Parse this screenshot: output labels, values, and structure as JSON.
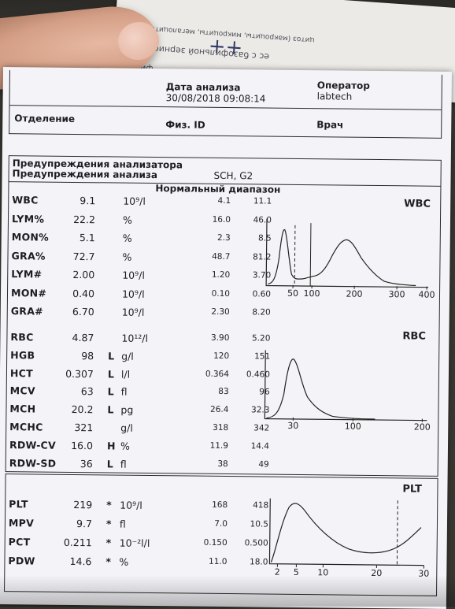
{
  "behind_paper": {
    "line1": "фильна",
    "line2": "ес с базофильной зернистостью",
    "line3": "цитоз (макроциты, микроциты, мегалоциты)",
    "handwriting": "++"
  },
  "header": {
    "date_label": "Дата анализа",
    "date_value": "30/08/2018 09:08:14",
    "operator_label": "Оператор",
    "operator_value": "labtech",
    "department_label": "Отделение",
    "phys_id_label": "Физ. ID",
    "doctor_label": "Врач"
  },
  "warnings": {
    "analyzer_label": "Предупреждения анализатора",
    "analysis_label": "Предупреждения анализа",
    "analysis_value": "SCH, G2",
    "normal_range_label": "Нормальный диапазон"
  },
  "wbc_rows": [
    {
      "name": "WBC",
      "value": "9.1",
      "flag": "",
      "unit": "10⁹/l",
      "lo": "4.1",
      "hi": "11.1"
    },
    {
      "name": "LYM%",
      "value": "22.2",
      "flag": "",
      "unit": "%",
      "lo": "16.0",
      "hi": "46.0"
    },
    {
      "name": "MON%",
      "value": "5.1",
      "flag": "",
      "unit": "%",
      "lo": "2.3",
      "hi": "8.5"
    },
    {
      "name": "GRA%",
      "value": "72.7",
      "flag": "",
      "unit": "%",
      "lo": "48.7",
      "hi": "81.2"
    },
    {
      "name": "LYM#",
      "value": "2.00",
      "flag": "",
      "unit": "10⁹/l",
      "lo": "1.20",
      "hi": "3.70"
    },
    {
      "name": "MON#",
      "value": "0.40",
      "flag": "",
      "unit": "10⁹/l",
      "lo": "0.10",
      "hi": "0.60"
    },
    {
      "name": "GRA#",
      "value": "6.70",
      "flag": "",
      "unit": "10⁹/l",
      "lo": "2.30",
      "hi": "8.20"
    }
  ],
  "rbc_rows": [
    {
      "name": "RBC",
      "value": "4.87",
      "flag": "",
      "unit": "10¹²/l",
      "lo": "3.90",
      "hi": "5.20"
    },
    {
      "name": "HGB",
      "value": "98",
      "flag": "L",
      "unit": "g/l",
      "lo": "120",
      "hi": "151"
    },
    {
      "name": "HCT",
      "value": "0.307",
      "flag": "L",
      "unit": "l/l",
      "lo": "0.364",
      "hi": "0.460"
    },
    {
      "name": "MCV",
      "value": "63",
      "flag": "L",
      "unit": "fl",
      "lo": "83",
      "hi": "96"
    },
    {
      "name": "MCH",
      "value": "20.2",
      "flag": "L",
      "unit": "pg",
      "lo": "26.4",
      "hi": "32.3"
    },
    {
      "name": "MCHC",
      "value": "321",
      "flag": "",
      "unit": "g/l",
      "lo": "318",
      "hi": "342"
    },
    {
      "name": "RDW-CV",
      "value": "16.0",
      "flag": "H",
      "unit": "%",
      "lo": "11.9",
      "hi": "14.4"
    },
    {
      "name": "RDW-SD",
      "value": "36",
      "flag": "L",
      "unit": "fl",
      "lo": "38",
      "hi": "49"
    }
  ],
  "plt_rows": [
    {
      "name": "PLT",
      "value": "219",
      "flag": "*",
      "unit": "10⁹/l",
      "lo": "168",
      "hi": "418"
    },
    {
      "name": "MPV",
      "value": "9.7",
      "flag": "*",
      "unit": "fl",
      "lo": "7.0",
      "hi": "10.5"
    },
    {
      "name": "PCT",
      "value": "0.211",
      "flag": "*",
      "unit": "10⁻²l/l",
      "lo": "0.150",
      "hi": "0.500"
    },
    {
      "name": "PDW",
      "value": "14.6",
      "flag": "*",
      "unit": "%",
      "lo": "11.0",
      "hi": "18.0"
    }
  ],
  "histograms": {
    "wbc": {
      "title": "WBC",
      "ticks": [
        "50",
        "100",
        "200",
        "300",
        "400"
      ]
    },
    "rbc": {
      "title": "RBC",
      "ticks": [
        "30",
        "100",
        "200"
      ]
    },
    "plt": {
      "title": "PLT",
      "ticks": [
        "2",
        "5",
        "10",
        "20",
        "30"
      ]
    }
  }
}
